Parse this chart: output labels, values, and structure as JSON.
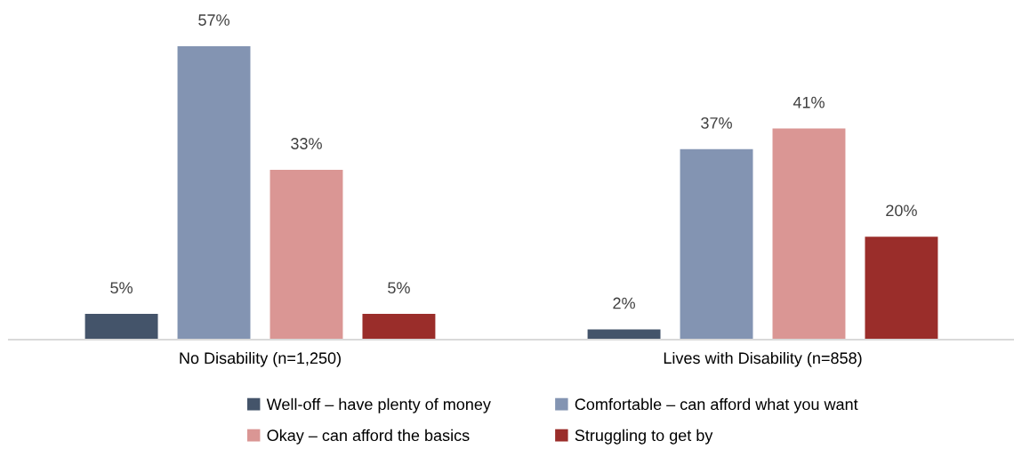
{
  "chart_data": {
    "type": "bar",
    "categories": [
      "No Disability (n=1,250)",
      "Lives with Disability (n=858)"
    ],
    "series": [
      {
        "name": "Well-off – have plenty of money",
        "color": "#44546a",
        "values": [
          5,
          2
        ],
        "value_labels": [
          "5%",
          "2%"
        ]
      },
      {
        "name": "Comfortable – can afford what you want",
        "color": "#8394b2",
        "values": [
          57,
          37
        ],
        "value_labels": [
          "57%",
          "37%"
        ]
      },
      {
        "name": "Okay – can afford the basics",
        "color": "#da9694",
        "values": [
          33,
          41
        ],
        "value_labels": [
          "33%",
          "41%"
        ]
      },
      {
        "name": "Struggling to get by",
        "color": "#9a2d2a",
        "values": [
          5,
          20
        ],
        "value_labels": [
          "5%",
          "20%"
        ]
      }
    ],
    "legend": "bottom",
    "tick_labels": "x"
  }
}
